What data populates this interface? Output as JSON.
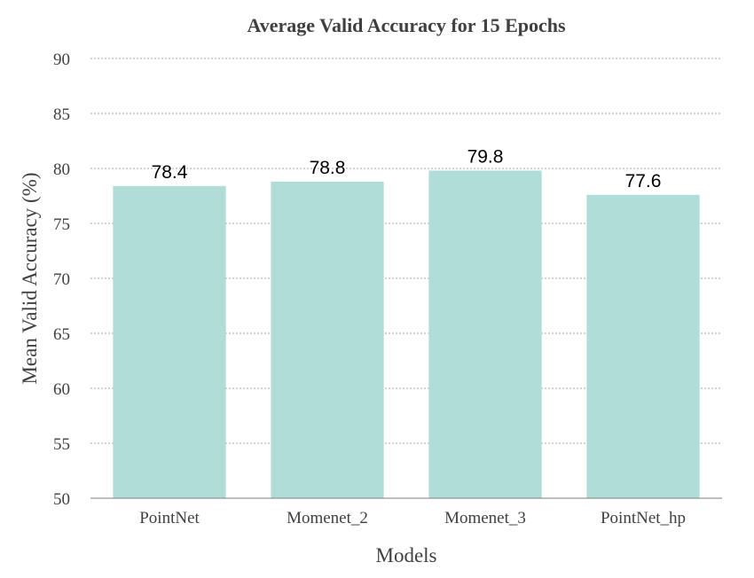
{
  "chart_data": {
    "type": "bar",
    "title": "Average Valid Accuracy for 15 Epochs",
    "xlabel": "Models",
    "ylabel": "Mean Valid Accuracy (%)",
    "categories": [
      "PointNet",
      "Momenet_2",
      "Momenet_3",
      "PointNet_hp"
    ],
    "values": [
      78.4,
      78.8,
      79.8,
      77.6
    ],
    "data_labels": [
      "78.4",
      "78.8",
      "79.8",
      "77.6"
    ],
    "ylim": [
      50,
      90
    ],
    "yticks": [
      50,
      55,
      60,
      65,
      70,
      75,
      80,
      85,
      90
    ],
    "grid": true,
    "legend": "none",
    "bar_color": "#b0ddd8"
  }
}
